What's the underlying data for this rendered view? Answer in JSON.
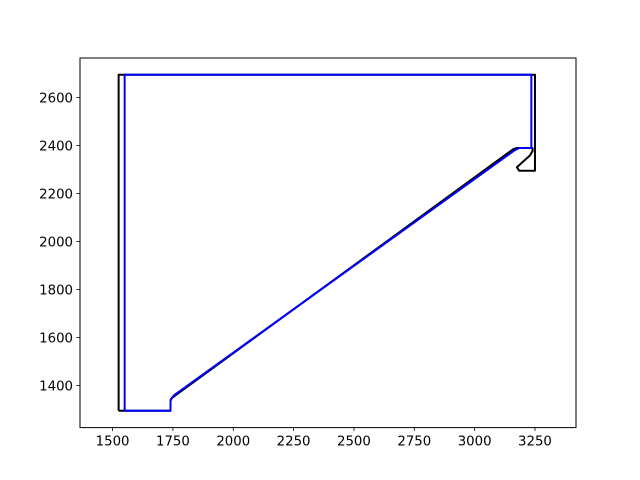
{
  "chart_data": {
    "type": "line",
    "title": "",
    "xlabel": "",
    "ylabel": "",
    "xlim": [
      1365,
      3420
    ],
    "ylim": [
      1225,
      2765
    ],
    "grid": false,
    "legend": "none",
    "xticks": [
      1500,
      1750,
      2000,
      2250,
      2500,
      2750,
      3000,
      3250
    ],
    "yticks": [
      1400,
      1600,
      1800,
      2000,
      2200,
      2400,
      2600
    ],
    "series": [
      {
        "color": "#000000",
        "points": [
          [
            1525,
            1295
          ],
          [
            1525,
            2695
          ],
          [
            3250,
            2695
          ],
          [
            3250,
            2295
          ],
          [
            3185,
            2295
          ],
          [
            3175,
            2310
          ],
          [
            3230,
            2360
          ],
          [
            3240,
            2378
          ],
          [
            3240,
            2390
          ],
          [
            3175,
            2390
          ],
          [
            3160,
            2385
          ],
          [
            1745,
            1348
          ],
          [
            1740,
            1340
          ],
          [
            1740,
            1295
          ],
          [
            1525,
            1295
          ]
        ]
      },
      {
        "color": "#0000ff",
        "points": [
          [
            1550,
            1295
          ],
          [
            1550,
            2695
          ],
          [
            3235,
            2695
          ],
          [
            3235,
            2390
          ],
          [
            3185,
            2390
          ],
          [
            3165,
            2380
          ],
          [
            1755,
            1360
          ],
          [
            1745,
            1348
          ],
          [
            1740,
            1335
          ],
          [
            1740,
            1295
          ],
          [
            1550,
            1295
          ]
        ]
      }
    ]
  }
}
